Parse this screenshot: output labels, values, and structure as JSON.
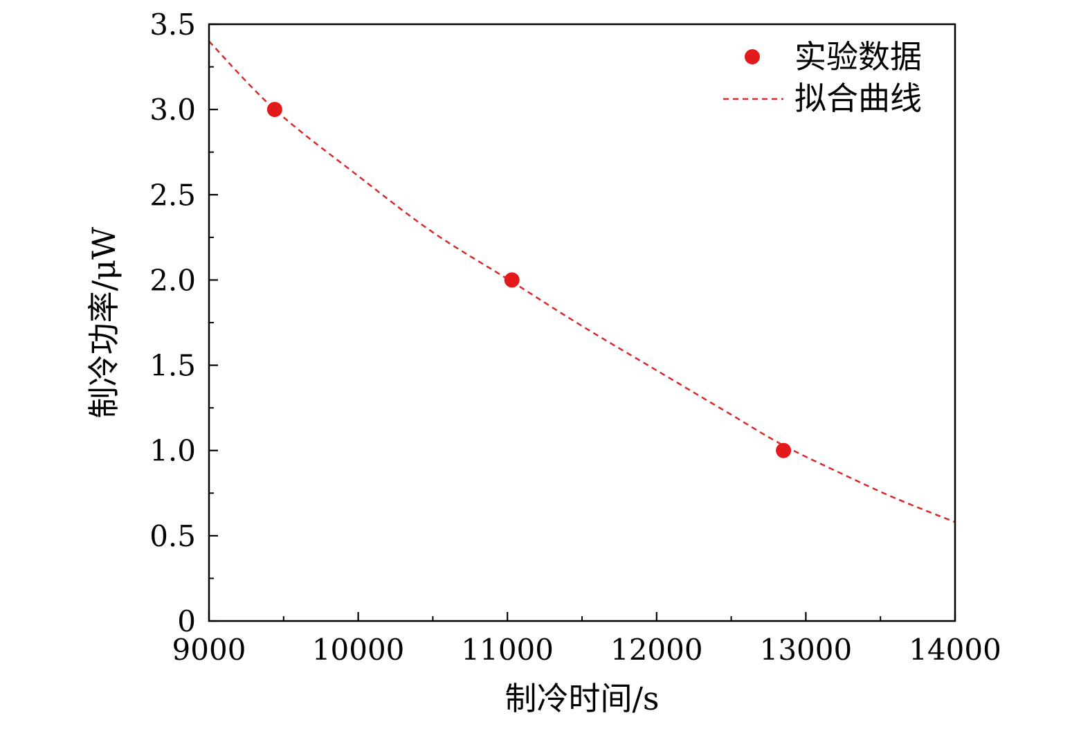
{
  "chart_data": {
    "type": "scatter",
    "xlabel": "制冷时间/s",
    "ylabel": "制冷功率/μW",
    "xlim": [
      9000,
      14000
    ],
    "ylim": [
      0,
      3.5
    ],
    "x_ticks": [
      "9000",
      "10000",
      "11000",
      "12000",
      "13000",
      "14000"
    ],
    "y_ticks": [
      "0",
      "0.5",
      "1.0",
      "1.5",
      "2.0",
      "2.5",
      "3.0",
      "3.5"
    ],
    "grid": false,
    "legend_position": "top-right",
    "series": [
      {
        "name": "实验数据",
        "style": "markers",
        "color": "#e31a1c",
        "x": [
          9440,
          11030,
          12850
        ],
        "y": [
          3.0,
          2.0,
          1.0
        ]
      },
      {
        "name": "拟合曲线",
        "style": "dashed-line",
        "color": "#d7282b",
        "x": [
          9000,
          9440,
          10000,
          10500,
          11030,
          11500,
          12000,
          12500,
          12850,
          13250,
          13600,
          14000
        ],
        "y": [
          3.4,
          3.0,
          2.61,
          2.28,
          1.99,
          1.73,
          1.47,
          1.21,
          1.03,
          0.86,
          0.72,
          0.58
        ]
      }
    ]
  }
}
